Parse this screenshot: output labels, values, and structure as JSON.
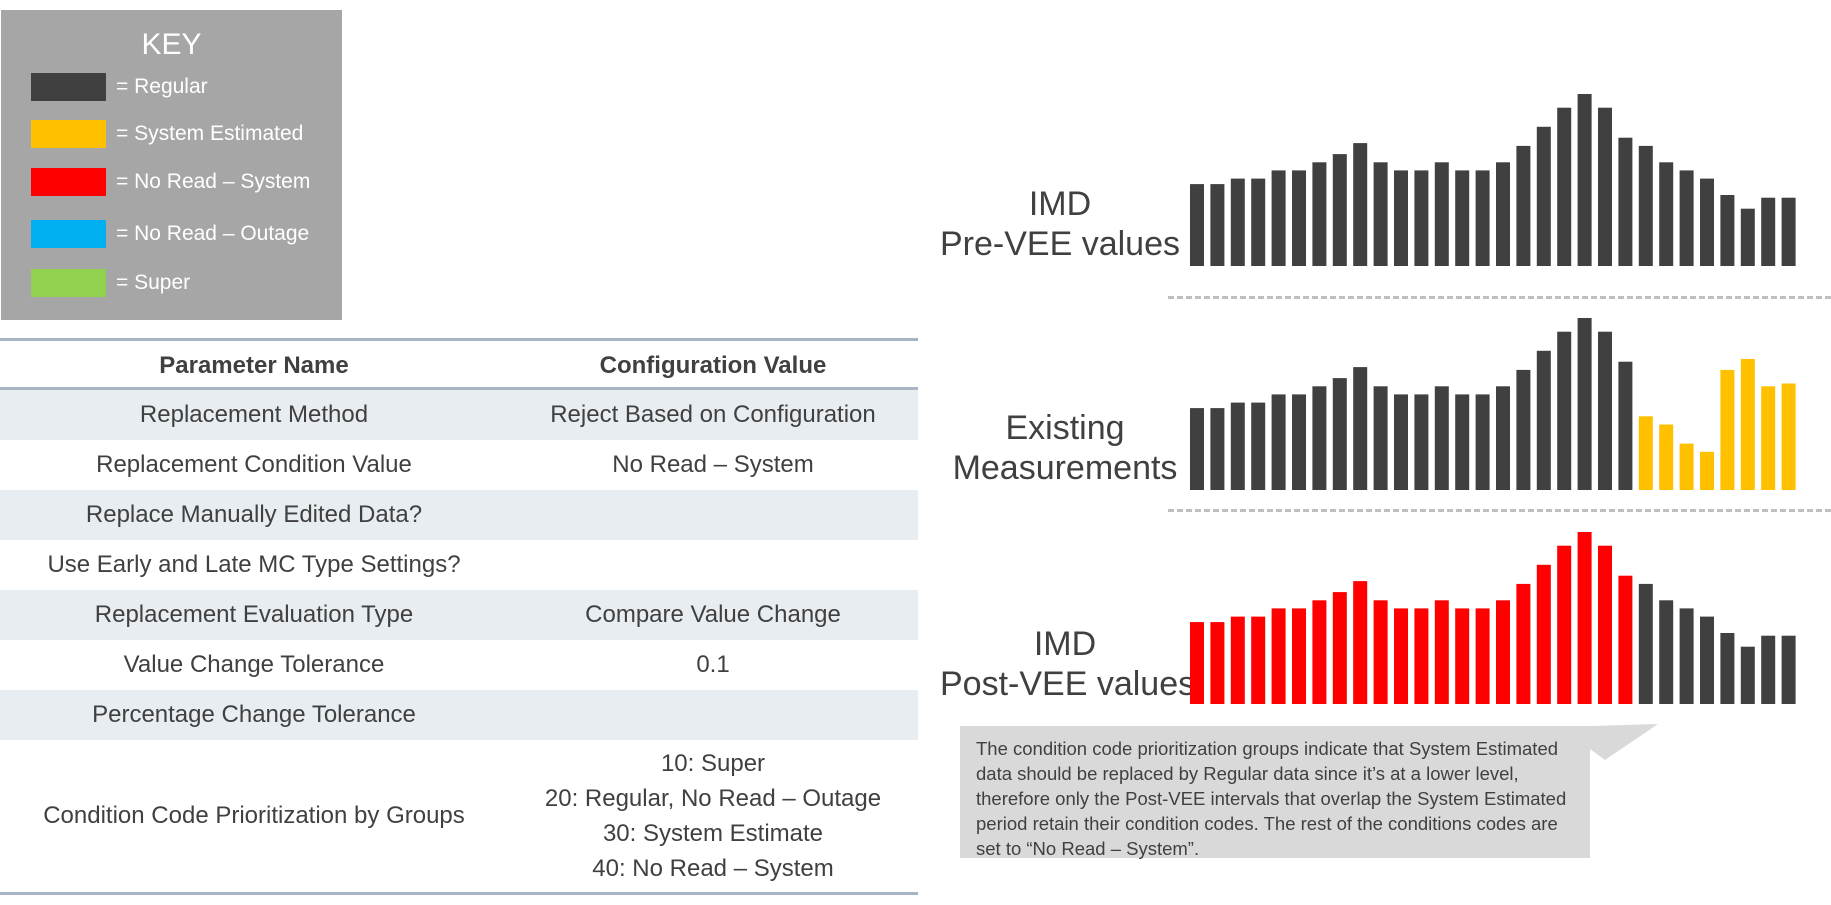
{
  "key": {
    "title": "KEY",
    "items": [
      {
        "label": "= Regular",
        "color": "#404040"
      },
      {
        "label": "= System Estimated",
        "color": "#ffc000"
      },
      {
        "label": "= No Read – System",
        "color": "#ff0000"
      },
      {
        "label": "= No Read – Outage",
        "color": "#00b0f0"
      },
      {
        "label": "= Super",
        "color": "#92d050"
      }
    ]
  },
  "table": {
    "headers": [
      "Parameter Name",
      "Configuration Value"
    ],
    "rows": [
      {
        "name": "Replacement Method",
        "value": [
          "Reject Based on Configuration"
        ]
      },
      {
        "name": "Replacement Condition Value",
        "value": [
          "No Read – System"
        ]
      },
      {
        "name": "Replace Manually Edited Data?",
        "value": [
          ""
        ]
      },
      {
        "name": "Use Early and Late MC Type Settings?",
        "value": [
          ""
        ]
      },
      {
        "name": "Replacement Evaluation Type",
        "value": [
          "Compare Value Change"
        ]
      },
      {
        "name": "Value Change Tolerance",
        "value": [
          "0.1"
        ]
      },
      {
        "name": "Percentage Change Tolerance",
        "value": [
          ""
        ]
      },
      {
        "name": "Condition Code Prioritization by Groups",
        "value": [
          "10: Super",
          "20: Regular, No Read – Outage",
          "30: System Estimate",
          "40: No Read – System"
        ]
      }
    ]
  },
  "diagram": {
    "charts": [
      {
        "label_lines": [
          "IMD",
          "Pre-VEE values"
        ],
        "values": [
          6,
          6,
          6.4,
          6.4,
          7,
          7,
          7.6,
          8.2,
          9,
          7.6,
          7,
          7,
          7.6,
          7,
          7,
          7.6,
          8.8,
          10.2,
          11.6,
          12.6,
          11.6,
          9.4,
          8.8,
          7.6,
          7,
          6.4,
          5.2,
          4.2,
          5,
          5
        ],
        "colors": [
          "regular",
          "regular",
          "regular",
          "regular",
          "regular",
          "regular",
          "regular",
          "regular",
          "regular",
          "regular",
          "regular",
          "regular",
          "regular",
          "regular",
          "regular",
          "regular",
          "regular",
          "regular",
          "regular",
          "regular",
          "regular",
          "regular",
          "regular",
          "regular",
          "regular",
          "regular",
          "regular",
          "regular",
          "regular",
          "regular"
        ]
      },
      {
        "label_lines": [
          "Existing",
          "Measurements"
        ],
        "values": [
          6,
          6,
          6.4,
          6.4,
          7,
          7,
          7.6,
          8.2,
          9,
          7.6,
          7,
          7,
          7.6,
          7,
          7,
          7.6,
          8.8,
          10.2,
          11.6,
          12.6,
          11.6,
          9.4,
          5.4,
          4.8,
          3.4,
          2.8,
          8.8,
          9.6,
          7.6,
          7.8
        ],
        "colors": [
          "regular",
          "regular",
          "regular",
          "regular",
          "regular",
          "regular",
          "regular",
          "regular",
          "regular",
          "regular",
          "regular",
          "regular",
          "regular",
          "regular",
          "regular",
          "regular",
          "regular",
          "regular",
          "regular",
          "regular",
          "regular",
          "regular",
          "estimated",
          "estimated",
          "estimated",
          "estimated",
          "estimated",
          "estimated",
          "estimated",
          "estimated"
        ]
      },
      {
        "label_lines": [
          "IMD",
          "Post-VEE values"
        ],
        "values": [
          6,
          6,
          6.4,
          6.4,
          7,
          7,
          7.6,
          8.2,
          9,
          7.6,
          7,
          7,
          7.6,
          7,
          7,
          7.6,
          8.8,
          10.2,
          11.6,
          12.6,
          11.6,
          9.4,
          8.8,
          7.6,
          7,
          6.4,
          5.2,
          4.2,
          5,
          5
        ],
        "colors": [
          "noread",
          "noread",
          "noread",
          "noread",
          "noread",
          "noread",
          "noread",
          "noread",
          "noread",
          "noread",
          "noread",
          "noread",
          "noread",
          "noread",
          "noread",
          "noread",
          "noread",
          "noread",
          "noread",
          "noread",
          "noread",
          "noread",
          "regular",
          "regular",
          "regular",
          "regular",
          "regular",
          "regular",
          "regular",
          "regular"
        ]
      }
    ],
    "series_colors": {
      "regular": "#404040",
      "estimated": "#ffc000",
      "noread": "#ff0000"
    },
    "callout_text": "The condition code prioritization groups indicate that System Estimated data should be replaced by Regular data since it’s at a lower level, therefore only the Post-VEE intervals that overlap the System Estimated period retain their condition codes.  The rest of the conditions codes are set to “No Read – System”."
  }
}
